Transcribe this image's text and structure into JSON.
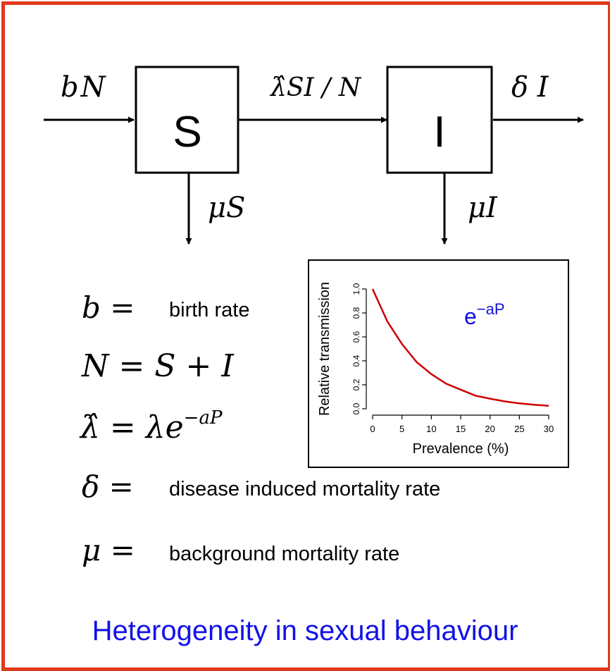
{
  "diagram": {
    "compartments": {
      "s": "S",
      "i": "I"
    },
    "flows": {
      "birth": "bN",
      "infection": "λ̂SI / N",
      "disease_death": "δ I",
      "background_death_s": "μS",
      "background_death_i": "μI"
    }
  },
  "definitions": [
    {
      "symbol": "b =",
      "text": "birth rate"
    },
    {
      "symbol": "N = S + I",
      "text": ""
    },
    {
      "symbol": "λ̂ = λe",
      "exponent": "−aP",
      "text": ""
    },
    {
      "symbol": "δ =",
      "text": "disease induced mortality rate"
    },
    {
      "symbol": "μ =",
      "text": "background mortality rate"
    }
  ],
  "inset_plot": {
    "formula": "e",
    "formula_exponent": "−aP",
    "formula_color": "#1010e0",
    "line_color": "#cc0000"
  },
  "chart_data": {
    "type": "line",
    "title": "",
    "xlabel": "Prevalence (%)",
    "ylabel": "Relative transmission",
    "xlim": [
      0,
      30
    ],
    "ylim": [
      0,
      1
    ],
    "x_ticks": [
      "0",
      "5",
      "10",
      "15",
      "20",
      "25",
      "30"
    ],
    "y_ticks": [
      "0.0",
      "0.2",
      "0.4",
      "0.6",
      "0.8",
      "1.0"
    ],
    "grid": false,
    "series": [
      {
        "x": [
          0,
          2.5,
          5,
          7.5,
          10,
          12.5,
          15,
          17.5,
          20,
          22.5,
          25,
          27.5,
          30
        ],
        "values": [
          1.0,
          0.73,
          0.54,
          0.39,
          0.29,
          0.21,
          0.16,
          0.11,
          0.085,
          0.062,
          0.046,
          0.034,
          0.025
        ]
      }
    ]
  },
  "footer": {
    "title": "Heterogeneity in sexual behaviour",
    "color": "#1212e8"
  },
  "colors": {
    "border": "#e0391c"
  }
}
